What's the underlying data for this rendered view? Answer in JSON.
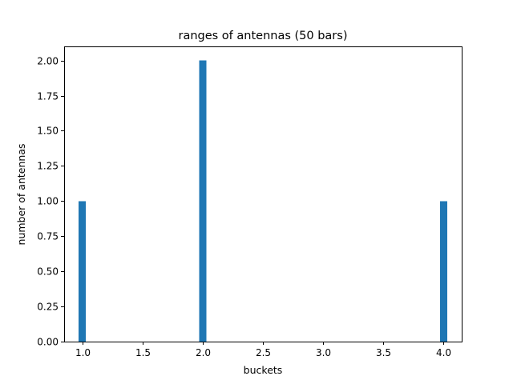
{
  "chart_data": {
    "type": "bar",
    "title": "ranges of antennas (50 bars)",
    "xlabel": "buckets",
    "ylabel": "number of antennas",
    "bins": 50,
    "bars": [
      {
        "x": 1.0,
        "value": 1
      },
      {
        "x": 2.0,
        "value": 2
      },
      {
        "x": 4.0,
        "value": 1
      }
    ],
    "xlim": [
      0.85,
      4.15
    ],
    "ylim": [
      0,
      2.1
    ],
    "xticks": [
      "1.0",
      "1.5",
      "2.0",
      "2.5",
      "3.0",
      "3.5",
      "4.0"
    ],
    "yticks": [
      "0.00",
      "0.25",
      "0.50",
      "0.75",
      "1.00",
      "1.25",
      "1.50",
      "1.75",
      "2.00"
    ],
    "bar_color": "#1f77b4",
    "grid": false,
    "legend": "none"
  }
}
